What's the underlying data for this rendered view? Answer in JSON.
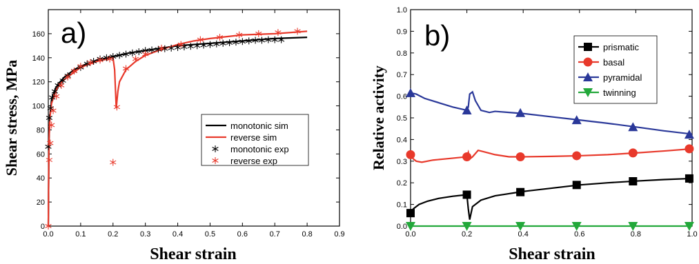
{
  "chart_data": [
    {
      "type": "line",
      "panel_label": "a)",
      "xlabel": "Shear strain",
      "ylabel": "Shear stress, MPa",
      "xlim": [
        0,
        0.9
      ],
      "ylim": [
        0,
        180
      ],
      "xticks": [
        "0.0",
        "0.1",
        "0.2",
        "0.3",
        "0.4",
        "0.5",
        "0.6",
        "0.7",
        "0.8",
        "0.9"
      ],
      "yticks": [
        "0",
        "20",
        "40",
        "60",
        "80",
        "100",
        "120",
        "140",
        "160"
      ],
      "legend_position": "center-right",
      "series": [
        {
          "name": "monotonic sim",
          "style": "line",
          "color": "#000000",
          "x": [
            0,
            0.002,
            0.005,
            0.01,
            0.02,
            0.03,
            0.05,
            0.08,
            0.1,
            0.15,
            0.2,
            0.25,
            0.3,
            0.35,
            0.4,
            0.5,
            0.6,
            0.7,
            0.8
          ],
          "y": [
            0,
            70,
            92,
            105,
            113,
            118,
            124,
            130,
            133,
            138,
            141,
            144,
            146,
            148,
            150,
            152,
            154,
            156,
            157
          ]
        },
        {
          "name": "reverse sim",
          "style": "line",
          "color": "#e8392b",
          "x": [
            0,
            0.002,
            0.005,
            0.01,
            0.02,
            0.03,
            0.05,
            0.08,
            0.1,
            0.15,
            0.2,
            0.205,
            0.21,
            0.215,
            0.22,
            0.24,
            0.27,
            0.3,
            0.35,
            0.4,
            0.45,
            0.5,
            0.6,
            0.7,
            0.8
          ],
          "y": [
            0,
            70,
            90,
            102,
            110,
            116,
            122,
            128,
            132,
            137,
            140,
            130,
            98,
            112,
            120,
            130,
            137,
            142,
            147,
            151,
            154,
            156,
            159,
            160,
            162
          ]
        },
        {
          "name": "monotonic exp",
          "style": "markers",
          "marker": "asterisk",
          "color": "#000000",
          "x": [
            0.0,
            0.003,
            0.007,
            0.012,
            0.02,
            0.03,
            0.045,
            0.06,
            0.08,
            0.1,
            0.12,
            0.14,
            0.16,
            0.18,
            0.2,
            0.22,
            0.24,
            0.26,
            0.28,
            0.3,
            0.32,
            0.34,
            0.36,
            0.38,
            0.4,
            0.42,
            0.44,
            0.46,
            0.48,
            0.5,
            0.52,
            0.54,
            0.56,
            0.58,
            0.6,
            0.62,
            0.64,
            0.66,
            0.68,
            0.7,
            0.72
          ],
          "y": [
            66,
            90,
            98,
            107,
            112,
            117,
            121,
            125,
            129,
            132,
            135,
            137,
            139,
            140,
            141,
            142,
            143,
            144,
            145,
            146,
            146.5,
            147,
            147.5,
            148,
            148.5,
            149,
            149.5,
            150,
            150.5,
            151,
            151.5,
            152,
            152.5,
            153,
            153.5,
            154,
            154.5,
            154.5,
            155,
            155,
            155
          ]
        },
        {
          "name": "reverse exp",
          "style": "markers",
          "marker": "asterisk",
          "color": "#e8392b",
          "x": [
            0.0,
            0.003,
            0.006,
            0.01,
            0.015,
            0.025,
            0.04,
            0.06,
            0.08,
            0.1,
            0.13,
            0.16,
            0.19,
            0.2,
            0.212,
            0.24,
            0.27,
            0.3,
            0.35,
            0.41,
            0.47,
            0.53,
            0.59,
            0.65,
            0.71,
            0.77
          ],
          "y": [
            0,
            55,
            69,
            84,
            96,
            108,
            117,
            124,
            129,
            133,
            136,
            138,
            139,
            53,
            99,
            131,
            139,
            143,
            148,
            151,
            155,
            157,
            159,
            160,
            161,
            162
          ]
        }
      ]
    },
    {
      "type": "line",
      "panel_label": "b)",
      "xlabel": "Shear strain",
      "ylabel": "Relative activity",
      "xlim": [
        0,
        1.0
      ],
      "ylim": [
        0,
        1.0
      ],
      "xticks": [
        "0.0",
        "0.2",
        "0.4",
        "0.6",
        "0.8",
        "1.0"
      ],
      "yticks": [
        "0.0",
        "0.1",
        "0.2",
        "0.3",
        "0.4",
        "0.5",
        "0.6",
        "0.7",
        "0.8",
        "0.9",
        "1.0"
      ],
      "legend_position": "top-right",
      "series": [
        {
          "name": "prismatic",
          "color": "#000000",
          "marker": "square",
          "x": [
            0,
            0.01,
            0.03,
            0.06,
            0.1,
            0.15,
            0.2,
            0.205,
            0.21,
            0.215,
            0.22,
            0.25,
            0.3,
            0.35,
            0.4,
            0.5,
            0.6,
            0.7,
            0.8,
            0.9,
            1.0
          ],
          "y": [
            0.06,
            0.08,
            0.1,
            0.115,
            0.128,
            0.138,
            0.145,
            0.08,
            0.03,
            0.06,
            0.09,
            0.12,
            0.14,
            0.15,
            0.16,
            0.175,
            0.19,
            0.2,
            0.208,
            0.215,
            0.22
          ],
          "marker_x": [
            0,
            0.2,
            0.39,
            0.59,
            0.79,
            0.99
          ],
          "marker_y": [
            0.06,
            0.145,
            0.157,
            0.19,
            0.207,
            0.22
          ]
        },
        {
          "name": "basal",
          "color": "#e8392b",
          "marker": "circle",
          "x": [
            0,
            0.01,
            0.02,
            0.04,
            0.08,
            0.12,
            0.16,
            0.2,
            0.205,
            0.21,
            0.22,
            0.24,
            0.27,
            0.3,
            0.35,
            0.4,
            0.5,
            0.6,
            0.7,
            0.8,
            0.9,
            1.0
          ],
          "y": [
            0.33,
            0.31,
            0.3,
            0.295,
            0.305,
            0.31,
            0.315,
            0.32,
            0.34,
            0.31,
            0.32,
            0.35,
            0.34,
            0.33,
            0.32,
            0.32,
            0.322,
            0.325,
            0.33,
            0.338,
            0.347,
            0.357
          ],
          "marker_x": [
            0,
            0.2,
            0.39,
            0.59,
            0.79,
            0.99
          ],
          "marker_y": [
            0.33,
            0.32,
            0.32,
            0.325,
            0.338,
            0.357
          ]
        },
        {
          "name": "pyramidal",
          "color": "#2a3899",
          "marker": "triangle-up",
          "x": [
            0,
            0.02,
            0.05,
            0.1,
            0.15,
            0.2,
            0.205,
            0.21,
            0.22,
            0.23,
            0.25,
            0.28,
            0.3,
            0.35,
            0.4,
            0.5,
            0.6,
            0.7,
            0.8,
            0.9,
            1.0
          ],
          "y": [
            0.615,
            0.61,
            0.59,
            0.57,
            0.55,
            0.535,
            0.55,
            0.61,
            0.62,
            0.58,
            0.535,
            0.525,
            0.53,
            0.525,
            0.52,
            0.505,
            0.49,
            0.475,
            0.458,
            0.44,
            0.425
          ],
          "marker_x": [
            0,
            0.2,
            0.39,
            0.59,
            0.79,
            0.99
          ],
          "marker_y": [
            0.615,
            0.535,
            0.523,
            0.49,
            0.458,
            0.423
          ]
        },
        {
          "name": "twinning",
          "color": "#22a83a",
          "marker": "triangle-down",
          "x": [
            0,
            0.2,
            0.4,
            0.6,
            0.8,
            1.0
          ],
          "y": [
            0,
            0,
            0,
            0,
            0,
            0
          ],
          "marker_x": [
            0,
            0.2,
            0.39,
            0.59,
            0.79,
            0.99
          ],
          "marker_y": [
            0,
            0,
            0,
            0,
            0,
            0
          ]
        }
      ]
    }
  ]
}
